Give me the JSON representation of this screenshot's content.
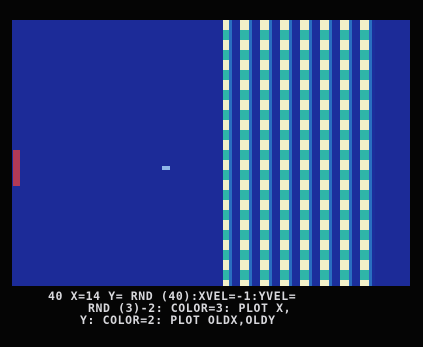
{
  "screen": {
    "lines": [
      "40 X=14 Y= RND (40):XVEL=-1:YVEL=",
      "RND (3)-2: COLOR=3: PLOT X,",
      "Y: COLOR=2: PLOT OLDX,OLDY"
    ]
  }
}
